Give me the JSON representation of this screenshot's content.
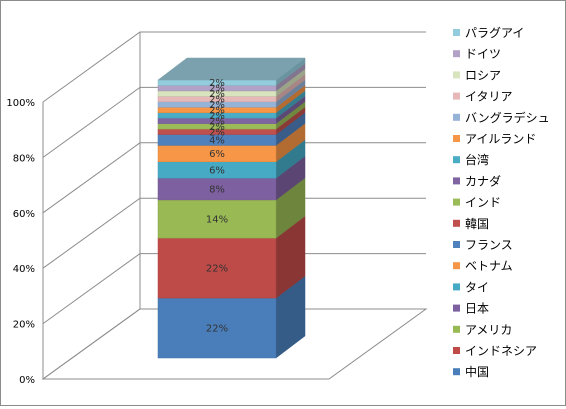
{
  "chart_data": {
    "type": "bar",
    "stacked": true,
    "percent": true,
    "three_d": true,
    "title": "",
    "xlabel": "",
    "ylabel": "",
    "ylim": [
      0,
      100
    ],
    "y_ticks": [
      "0%",
      "20%",
      "40%",
      "60%",
      "80%",
      "100%"
    ],
    "grid": true,
    "legend_position": "right",
    "series": [
      {
        "name": "中国",
        "value": 22,
        "label": "22%",
        "color": "#4a7ebb"
      },
      {
        "name": "インドネシア",
        "value": 22,
        "label": "22%",
        "color": "#be4b48"
      },
      {
        "name": "アメリカ",
        "value": 14,
        "label": "14%",
        "color": "#98b954"
      },
      {
        "name": "日本",
        "value": 8,
        "label": "8%",
        "color": "#7d60a0"
      },
      {
        "name": "タイ",
        "value": 6,
        "label": "6%",
        "color": "#46aac5"
      },
      {
        "name": "ベトナム",
        "value": 6,
        "label": "6%",
        "color": "#f79646"
      },
      {
        "name": "フランス",
        "value": 4,
        "label": "4%",
        "color": "#4f81bd"
      },
      {
        "name": "韓国",
        "value": 2,
        "label": "2%",
        "color": "#c0504d"
      },
      {
        "name": "インド",
        "value": 2,
        "label": "2%",
        "color": "#9bbb59"
      },
      {
        "name": "カナダ",
        "value": 2,
        "label": "2%",
        "color": "#8064a2"
      },
      {
        "name": "台湾",
        "value": 2,
        "label": "2%",
        "color": "#4bacc6"
      },
      {
        "name": "アイルランド",
        "value": 2,
        "label": "2%",
        "color": "#f79646"
      },
      {
        "name": "バングラデシュ",
        "value": 2,
        "label": "2%",
        "color": "#95b3d7"
      },
      {
        "name": "イタリア",
        "value": 2,
        "label": "2%",
        "color": "#e6b9b8"
      },
      {
        "name": "ロシア",
        "value": 2,
        "label": "2%",
        "color": "#d7e4bd"
      },
      {
        "name": "ドイツ",
        "value": 2,
        "label": "2%",
        "color": "#b3a2c7"
      },
      {
        "name": "パラグアイ",
        "value": 2,
        "label": "2%",
        "color": "#93cddd"
      }
    ]
  }
}
